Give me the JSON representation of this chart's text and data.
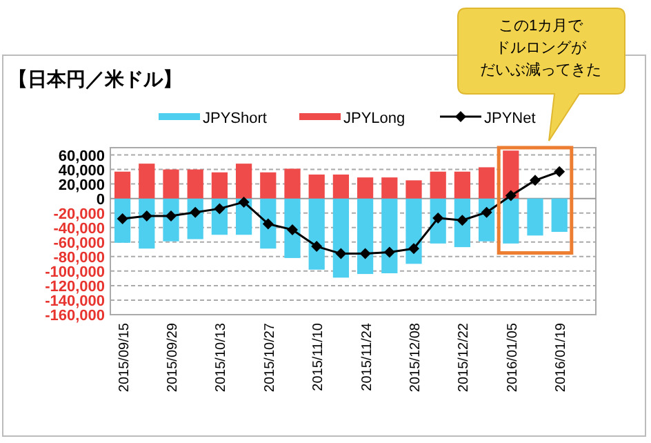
{
  "chart_data": {
    "type": "bar",
    "title": "【日本円／米ドル】",
    "categories": [
      "2015/09/15",
      null,
      "2015/09/29",
      null,
      "2015/10/13",
      null,
      "2015/10/27",
      null,
      "2015/11/10",
      null,
      "2015/11/24",
      null,
      "2015/12/08",
      null,
      "2015/12/22",
      null,
      "2016/01/05",
      null,
      "2016/01/19",
      null
    ],
    "series": [
      {
        "name": "JPYShort",
        "color": "#4fcff0",
        "values": [
          -61000,
          -69000,
          -59000,
          -56000,
          -50000,
          -50000,
          -69000,
          -82000,
          -98000,
          -109000,
          -104000,
          -103000,
          -90000,
          -62000,
          -67000,
          -59000,
          -62000,
          -51000,
          -46000,
          null
        ]
      },
      {
        "name": "JPYLong",
        "color": "#ef4b4b",
        "values": [
          37000,
          48000,
          40000,
          40000,
          36000,
          48000,
          36000,
          41000,
          33000,
          33000,
          29000,
          29000,
          25000,
          37000,
          37000,
          43000,
          66000,
          null,
          null,
          null
        ]
      },
      {
        "name": "JPYNet",
        "type": "line",
        "color": "#000000",
        "marker": "diamond",
        "values": [
          -28000,
          -24000,
          -24000,
          -19000,
          -14000,
          -5000,
          -35000,
          -43000,
          -66000,
          -76000,
          -76000,
          -74000,
          -69000,
          -27000,
          -30000,
          -19000,
          4000,
          25000,
          37000,
          null
        ]
      }
    ],
    "ylim": [
      -160000,
      70000
    ],
    "yticks": [
      {
        "value": 60000,
        "label": "60,000"
      },
      {
        "value": 40000,
        "label": "40,000"
      },
      {
        "value": 20000,
        "label": "20,000"
      },
      0,
      {
        "value": -20000,
        "label": "-20,000"
      },
      {
        "value": -40000,
        "label": "-40,000"
      },
      {
        "value": -60000,
        "label": "-60,000"
      },
      {
        "value": -80000,
        "label": "-80,000"
      },
      {
        "value": -100000,
        "label": "-100,000"
      },
      {
        "value": -120000,
        "label": "-120,000"
      },
      {
        "value": -140000,
        "label": "-140,000"
      },
      {
        "value": -160000,
        "label": "-160,000"
      }
    ],
    "grid": "y",
    "legend": "top",
    "stacked": true,
    "annotations": [
      "この1カ月で",
      "ドルロングが",
      "だいぶ減ってきた"
    ]
  }
}
